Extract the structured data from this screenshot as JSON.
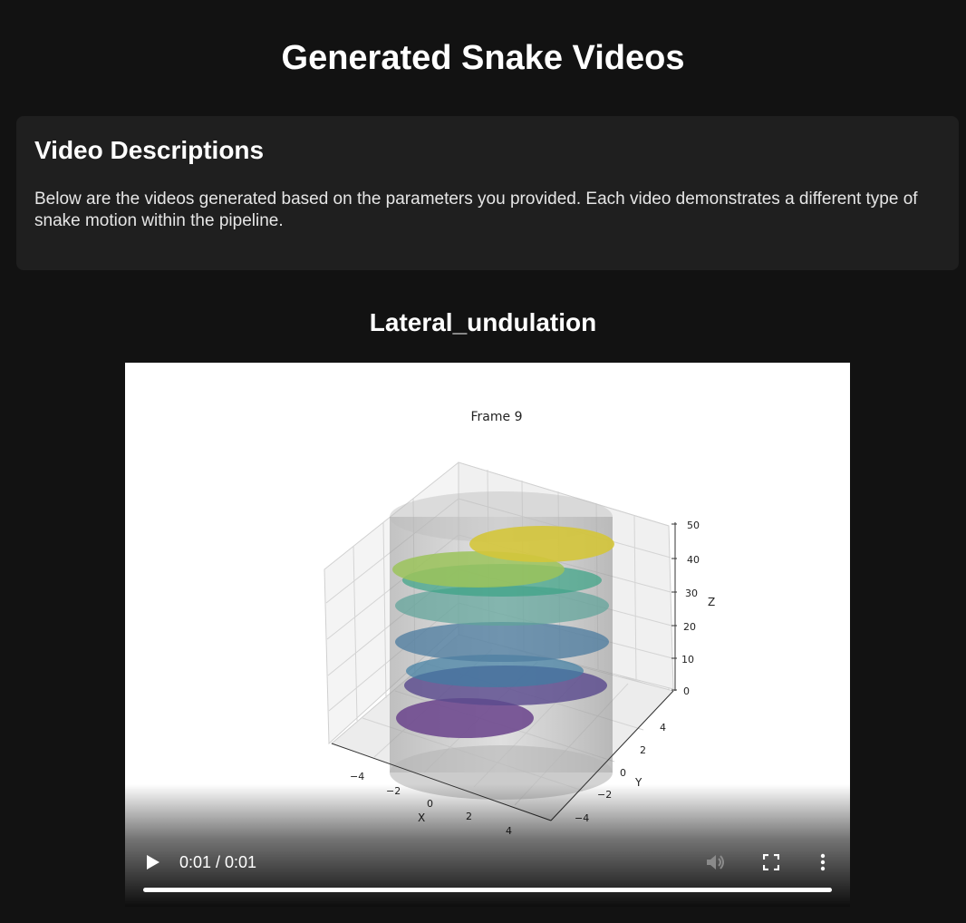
{
  "page": {
    "title": "Generated Snake Videos"
  },
  "description": {
    "heading": "Video Descriptions",
    "text": "Below are the videos generated based on the parameters you provided. Each video demonstrates a different type of snake motion within the pipeline."
  },
  "video": {
    "title": "Lateral_undulation",
    "frame": {
      "title": "Frame 9",
      "x_axis_label": "X",
      "y_axis_label": "Y",
      "z_axis_label": "Z",
      "x_ticks": [
        "−4",
        "−2",
        "0",
        "2",
        "4"
      ],
      "y_ticks": [
        "−4",
        "−2",
        "0",
        "2",
        "4"
      ],
      "z_ticks": [
        "0",
        "10",
        "20",
        "30",
        "40",
        "50"
      ]
    },
    "controls": {
      "time": "0:01 / 0:01",
      "progress": 1.0,
      "play_icon": "play-icon",
      "mute_icon": "volume-muted-icon",
      "fullscreen_icon": "fullscreen-icon",
      "more_icon": "more-vertical-icon"
    }
  },
  "colors": {
    "background": "#121212",
    "card": "#1f1f1f",
    "text": "#ffffff"
  }
}
